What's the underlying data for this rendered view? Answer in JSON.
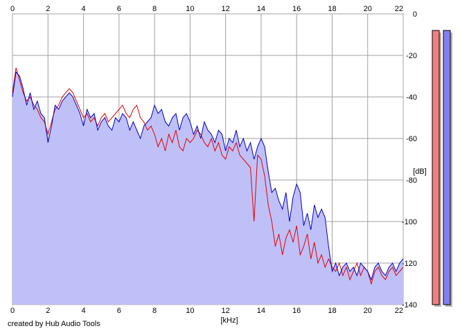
{
  "chart_data": {
    "type": "area",
    "xlabel": "[kHz]",
    "ylabel": "[dB]",
    "xlim": [
      0,
      22
    ],
    "ylim": [
      -140,
      0
    ],
    "x_ticks": [
      0,
      2,
      4,
      6,
      8,
      10,
      12,
      14,
      16,
      18,
      20,
      22
    ],
    "y_ticks": [
      0,
      -20,
      -40,
      -60,
      -80,
      -100,
      -120,
      -140
    ],
    "grid": true,
    "series": [
      {
        "color": "#0000c8",
        "fill": "#c0c0f8",
        "x": [
          0,
          0.2,
          0.4,
          0.6,
          0.8,
          1.0,
          1.2,
          1.4,
          1.6,
          1.8,
          2.0,
          2.2,
          2.4,
          2.6,
          2.8,
          3.0,
          3.2,
          3.4,
          3.6,
          3.8,
          4.0,
          4.2,
          4.4,
          4.6,
          4.8,
          5.0,
          5.2,
          5.4,
          5.6,
          5.8,
          6.0,
          6.2,
          6.4,
          6.6,
          6.8,
          7.0,
          7.2,
          7.4,
          7.6,
          7.8,
          8.0,
          8.2,
          8.4,
          8.6,
          8.8,
          9.0,
          9.2,
          9.4,
          9.6,
          9.8,
          10.0,
          10.2,
          10.4,
          10.6,
          10.8,
          11.0,
          11.2,
          11.4,
          11.6,
          11.8,
          12.0,
          12.2,
          12.4,
          12.6,
          12.8,
          13.0,
          13.2,
          13.4,
          13.6,
          13.8,
          14.0,
          14.2,
          14.4,
          14.6,
          14.8,
          15.0,
          15.2,
          15.4,
          15.6,
          15.8,
          16.0,
          16.2,
          16.4,
          16.6,
          16.8,
          17.0,
          17.2,
          17.4,
          17.6,
          17.8,
          18.0,
          18.2,
          18.4,
          18.6,
          18.8,
          19.0,
          19.2,
          19.4,
          19.6,
          19.8,
          20.0,
          20.2,
          20.4,
          20.6,
          20.8,
          21.0,
          21.2,
          21.4,
          21.6,
          21.8,
          22.0
        ],
        "values": [
          -40,
          -28,
          -30,
          -36,
          -44,
          -38,
          -46,
          -42,
          -48,
          -50,
          -62,
          -54,
          -44,
          -46,
          -42,
          -40,
          -38,
          -40,
          -44,
          -48,
          -54,
          -46,
          -50,
          -48,
          -56,
          -52,
          -50,
          -54,
          -56,
          -50,
          -52,
          -48,
          -50,
          -56,
          -52,
          -56,
          -60,
          -54,
          -52,
          -50,
          -44,
          -48,
          -46,
          -52,
          -54,
          -50,
          -48,
          -56,
          -50,
          -48,
          -52,
          -58,
          -54,
          -60,
          -52,
          -56,
          -58,
          -62,
          -56,
          -58,
          -66,
          -60,
          -62,
          -56,
          -64,
          -60,
          -66,
          -62,
          -70,
          -64,
          -60,
          -64,
          -76,
          -86,
          -84,
          -90,
          -94,
          -86,
          -100,
          -88,
          -82,
          -86,
          -102,
          -96,
          -104,
          -92,
          -98,
          -94,
          -98,
          -112,
          -124,
          -120,
          -126,
          -122,
          -120,
          -124,
          -122,
          -126,
          -120,
          -122,
          -124,
          -128,
          -122,
          -120,
          -124,
          -126,
          -122,
          -120,
          -124,
          -120,
          -118
        ]
      },
      {
        "color": "#e00000",
        "x": [
          0,
          0.2,
          0.4,
          0.6,
          0.8,
          1.0,
          1.2,
          1.4,
          1.6,
          1.8,
          2.0,
          2.2,
          2.4,
          2.6,
          2.8,
          3.0,
          3.2,
          3.4,
          3.6,
          3.8,
          4.0,
          4.2,
          4.4,
          4.6,
          4.8,
          5.0,
          5.2,
          5.4,
          5.6,
          5.8,
          6.0,
          6.2,
          6.4,
          6.6,
          6.8,
          7.0,
          7.2,
          7.4,
          7.6,
          7.8,
          8.0,
          8.2,
          8.4,
          8.6,
          8.8,
          9.0,
          9.2,
          9.4,
          9.6,
          9.8,
          10.0,
          10.2,
          10.4,
          10.6,
          10.8,
          11.0,
          11.2,
          11.4,
          11.6,
          11.8,
          12.0,
          12.2,
          12.4,
          12.6,
          12.8,
          13.0,
          13.2,
          13.4,
          13.6,
          13.8,
          14.0,
          14.2,
          14.4,
          14.6,
          14.8,
          15.0,
          15.2,
          15.4,
          15.6,
          15.8,
          16.0,
          16.2,
          16.4,
          16.6,
          16.8,
          17.0,
          17.2,
          17.4,
          17.6,
          17.8,
          18.0,
          18.2,
          18.4,
          18.6,
          18.8,
          19.0,
          19.2,
          19.4,
          19.6,
          19.8,
          20.0,
          20.2,
          20.4,
          20.6,
          20.8,
          21.0,
          21.2,
          21.4,
          21.6,
          21.8,
          22.0
        ],
        "values": [
          -38,
          -26,
          -32,
          -38,
          -42,
          -40,
          -44,
          -46,
          -50,
          -52,
          -58,
          -52,
          -46,
          -44,
          -40,
          -38,
          -36,
          -38,
          -42,
          -46,
          -50,
          -48,
          -52,
          -50,
          -54,
          -50,
          -48,
          -52,
          -50,
          -48,
          -46,
          -44,
          -48,
          -50,
          -46,
          -44,
          -50,
          -52,
          -56,
          -54,
          -58,
          -64,
          -60,
          -66,
          -58,
          -62,
          -56,
          -64,
          -66,
          -60,
          -62,
          -60,
          -56,
          -58,
          -62,
          -64,
          -60,
          -66,
          -62,
          -68,
          -70,
          -64,
          -66,
          -62,
          -68,
          -70,
          -72,
          -74,
          -100,
          -68,
          -70,
          -78,
          -92,
          -100,
          -112,
          -106,
          -116,
          -108,
          -104,
          -110,
          -102,
          -116,
          -112,
          -106,
          -118,
          -110,
          -120,
          -116,
          -122,
          -118,
          -122,
          -124,
          -120,
          -126,
          -122,
          -128,
          -124,
          -120,
          -126,
          -122,
          -124,
          -130,
          -124,
          -122,
          -126,
          -128,
          -124,
          -122,
          -126,
          -124,
          -122
        ]
      }
    ]
  },
  "level_meters": [
    {
      "color": "#f08080",
      "level_db": -8
    },
    {
      "color": "#8080f0",
      "level_db": -8
    }
  ],
  "footer": {
    "credit": "created by Hub Audio Tools"
  }
}
